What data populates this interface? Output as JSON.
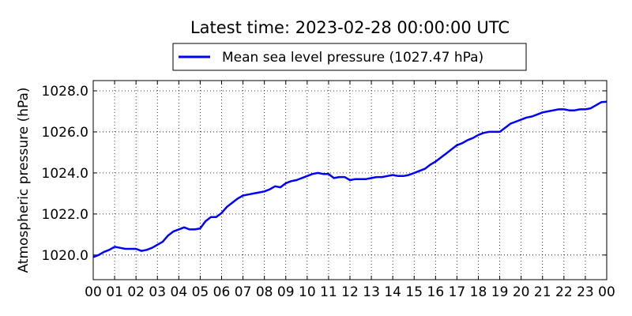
{
  "chart_data": {
    "type": "line",
    "title": "Latest time: 2023-02-28 00:00:00 UTC",
    "xlabel": "",
    "ylabel": "Atmospheric pressure (hPa)",
    "xlim": [
      0,
      24
    ],
    "ylim": [
      1018.8,
      1028.5
    ],
    "x_ticks": [
      0,
      1,
      2,
      3,
      4,
      5,
      6,
      7,
      8,
      9,
      10,
      11,
      12,
      13,
      14,
      15,
      16,
      17,
      18,
      19,
      20,
      21,
      22,
      23,
      24
    ],
    "x_tick_labels": [
      "00",
      "01",
      "02",
      "03",
      "04",
      "05",
      "06",
      "07",
      "08",
      "09",
      "10",
      "11",
      "12",
      "13",
      "14",
      "15",
      "16",
      "17",
      "18",
      "19",
      "20",
      "21",
      "22",
      "23",
      "00"
    ],
    "y_ticks": [
      1020.0,
      1022.0,
      1024.0,
      1026.0,
      1028.0
    ],
    "y_tick_labels": [
      "1020.0",
      "1022.0",
      "1024.0",
      "1026.0",
      "1028.0"
    ],
    "grid": true,
    "legend_position": "top-center",
    "series": [
      {
        "name": "Mean sea level pressure (1027.47 hPa)",
        "color": "#0000ff",
        "x": [
          0,
          0.25,
          0.5,
          0.75,
          1,
          1.25,
          1.5,
          1.75,
          2,
          2.25,
          2.5,
          2.75,
          3,
          3.25,
          3.5,
          3.75,
          4,
          4.25,
          4.5,
          4.75,
          5,
          5.25,
          5.5,
          5.75,
          6,
          6.25,
          6.5,
          6.75,
          7,
          7.25,
          7.5,
          7.75,
          8,
          8.25,
          8.5,
          8.75,
          9,
          9.25,
          9.5,
          9.75,
          10,
          10.25,
          10.5,
          10.75,
          11,
          11.25,
          11.5,
          11.75,
          12,
          12.25,
          12.5,
          12.75,
          13,
          13.25,
          13.5,
          13.75,
          14,
          14.25,
          14.5,
          14.75,
          15,
          15.25,
          15.5,
          15.75,
          16,
          16.25,
          16.5,
          16.75,
          17,
          17.25,
          17.5,
          17.75,
          18,
          18.25,
          18.5,
          18.75,
          19,
          19.25,
          19.5,
          19.75,
          20,
          20.25,
          20.5,
          20.75,
          21,
          21.25,
          21.5,
          21.75,
          22,
          22.25,
          22.5,
          22.75,
          23,
          23.25,
          23.5,
          23.75,
          24
        ],
        "y": [
          1019.9,
          1020.0,
          1020.15,
          1020.25,
          1020.4,
          1020.35,
          1020.3,
          1020.3,
          1020.3,
          1020.2,
          1020.25,
          1020.35,
          1020.5,
          1020.65,
          1020.95,
          1021.15,
          1021.25,
          1021.35,
          1021.25,
          1021.25,
          1021.3,
          1021.65,
          1021.85,
          1021.85,
          1022.05,
          1022.35,
          1022.55,
          1022.75,
          1022.9,
          1022.95,
          1023.0,
          1023.05,
          1023.1,
          1023.2,
          1023.35,
          1023.3,
          1023.5,
          1023.6,
          1023.65,
          1023.75,
          1023.85,
          1023.95,
          1024.0,
          1023.95,
          1023.95,
          1023.75,
          1023.8,
          1023.8,
          1023.65,
          1023.7,
          1023.7,
          1023.7,
          1023.75,
          1023.8,
          1023.8,
          1023.85,
          1023.9,
          1023.85,
          1023.85,
          1023.9,
          1024.0,
          1024.1,
          1024.2,
          1024.4,
          1024.55,
          1024.75,
          1024.95,
          1025.15,
          1025.35,
          1025.45,
          1025.6,
          1025.7,
          1025.85,
          1025.95,
          1026.0,
          1026.0,
          1026.0,
          1026.2,
          1026.4,
          1026.5,
          1026.6,
          1026.7,
          1026.75,
          1026.85,
          1026.95,
          1027.0,
          1027.05,
          1027.1,
          1027.1,
          1027.05,
          1027.05,
          1027.1,
          1027.1,
          1027.15,
          1027.3,
          1027.45,
          1027.47
        ]
      }
    ]
  }
}
